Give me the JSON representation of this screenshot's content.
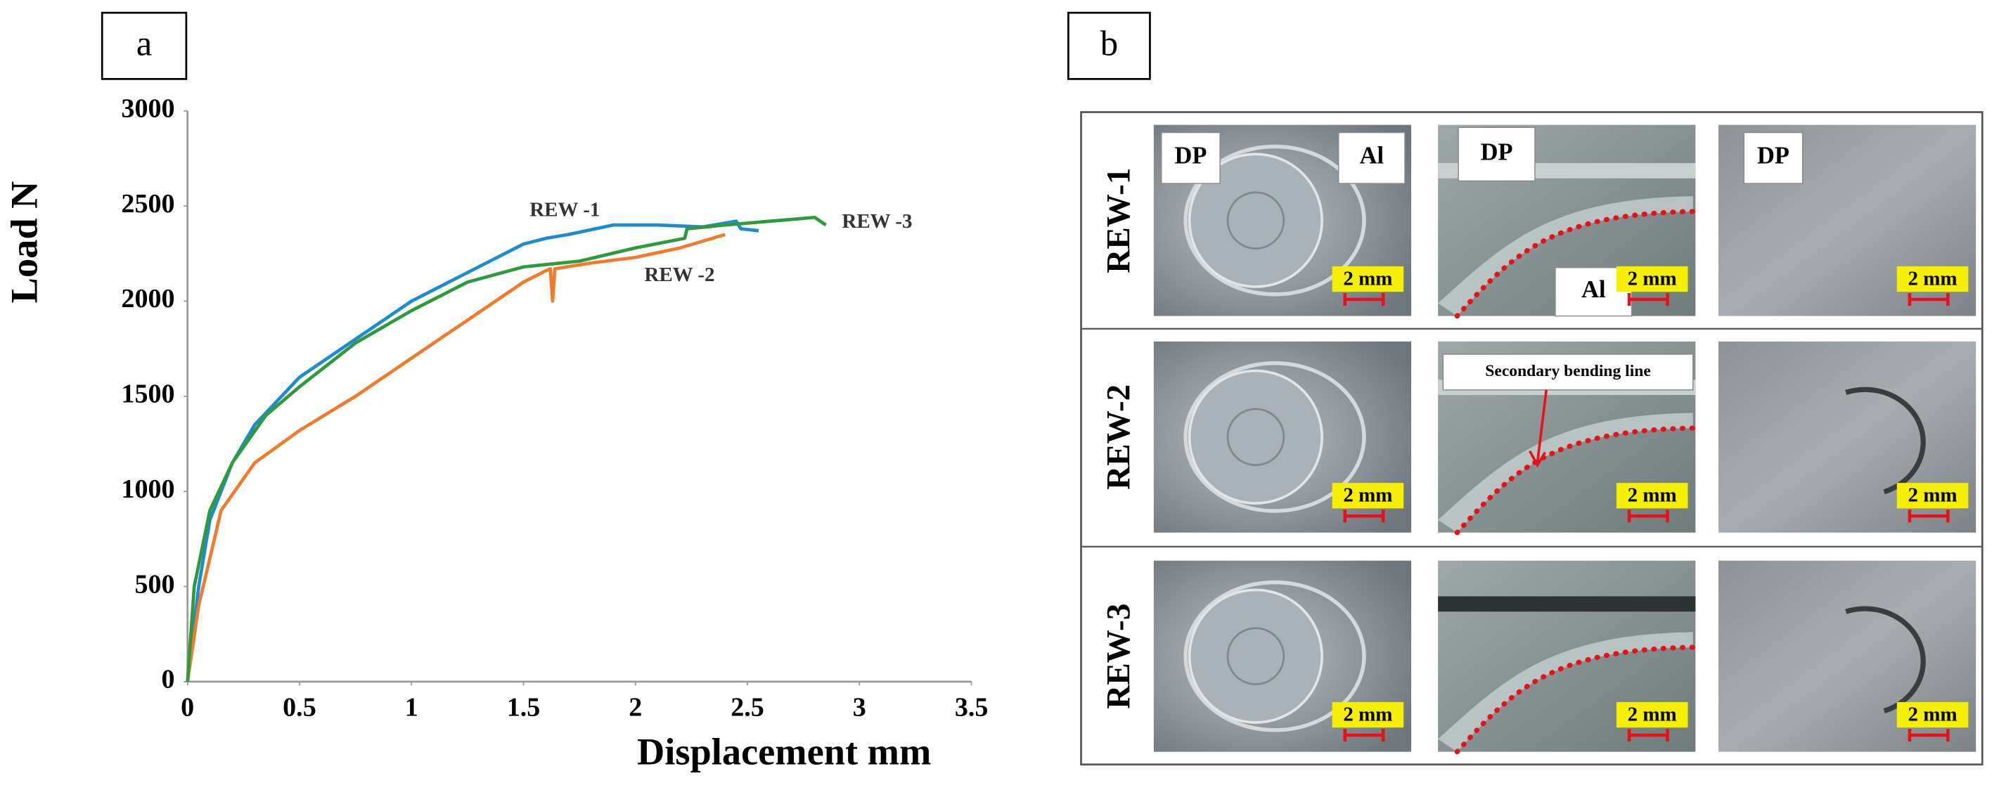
{
  "chart_data": {
    "type": "line",
    "x_label": "Displacement mm",
    "y_label": "Load N",
    "xlim": [
      0,
      3.5
    ],
    "xticks": [
      0,
      0.5,
      1,
      1.5,
      2,
      2.5,
      3,
      3.5
    ],
    "ylim": [
      0,
      3000
    ],
    "yticks": [
      0,
      500,
      1000,
      1500,
      2000,
      2500,
      3000
    ],
    "grid": false,
    "series": [
      {
        "name": "REW -1",
        "color": "#1e8bd0",
        "x": [
          0,
          0.05,
          0.1,
          0.2,
          0.3,
          0.5,
          0.75,
          1,
          1.25,
          1.5,
          1.6,
          1.7,
          1.9,
          2.1,
          2.3,
          2.45,
          2.47,
          2.55
        ],
        "values": [
          0,
          500,
          850,
          1150,
          1350,
          1600,
          1800,
          2000,
          2150,
          2300,
          2330,
          2350,
          2400,
          2400,
          2390,
          2420,
          2380,
          2370
        ]
      },
      {
        "name": "REW -2",
        "color": "#f07b2c",
        "x": [
          0,
          0.05,
          0.15,
          0.3,
          0.5,
          0.75,
          1,
          1.25,
          1.5,
          1.6,
          1.62,
          1.63,
          1.64,
          1.8,
          2,
          2.2,
          2.4
        ],
        "values": [
          0,
          400,
          900,
          1150,
          1320,
          1500,
          1700,
          1900,
          2100,
          2160,
          2170,
          2000,
          2170,
          2200,
          2230,
          2280,
          2350
        ]
      },
      {
        "name": "REW -3",
        "color": "#2f9a3c",
        "x": [
          0,
          0.03,
          0.1,
          0.2,
          0.35,
          0.5,
          0.75,
          1,
          1.25,
          1.5,
          1.75,
          2,
          2.22,
          2.23,
          2.4,
          2.6,
          2.8,
          2.85
        ],
        "values": [
          0,
          500,
          900,
          1150,
          1400,
          1550,
          1780,
          1950,
          2100,
          2180,
          2210,
          2280,
          2330,
          2380,
          2400,
          2420,
          2440,
          2400
        ]
      }
    ]
  },
  "figure": {
    "panels": [
      "a",
      "b"
    ],
    "photo_rows": [
      {
        "label": "REW-1",
        "cells": [
          {
            "tags": [
              "DP",
              "Al"
            ],
            "scale": "2 mm"
          },
          {
            "tags": [
              "DP",
              "Al"
            ],
            "scale": "2 mm"
          },
          {
            "tags": [
              "DP"
            ],
            "scale": "2 mm"
          }
        ]
      },
      {
        "label": "REW-2",
        "cells": [
          {
            "scale": "2 mm"
          },
          {
            "tags": [
              "Secondary bending line"
            ],
            "scale": "2 mm"
          },
          {
            "scale": "2 mm"
          }
        ]
      },
      {
        "label": "REW-3",
        "cells": [
          {
            "scale": "2 mm"
          },
          {
            "scale": "2 mm"
          },
          {
            "scale": "2 mm"
          }
        ]
      }
    ]
  }
}
